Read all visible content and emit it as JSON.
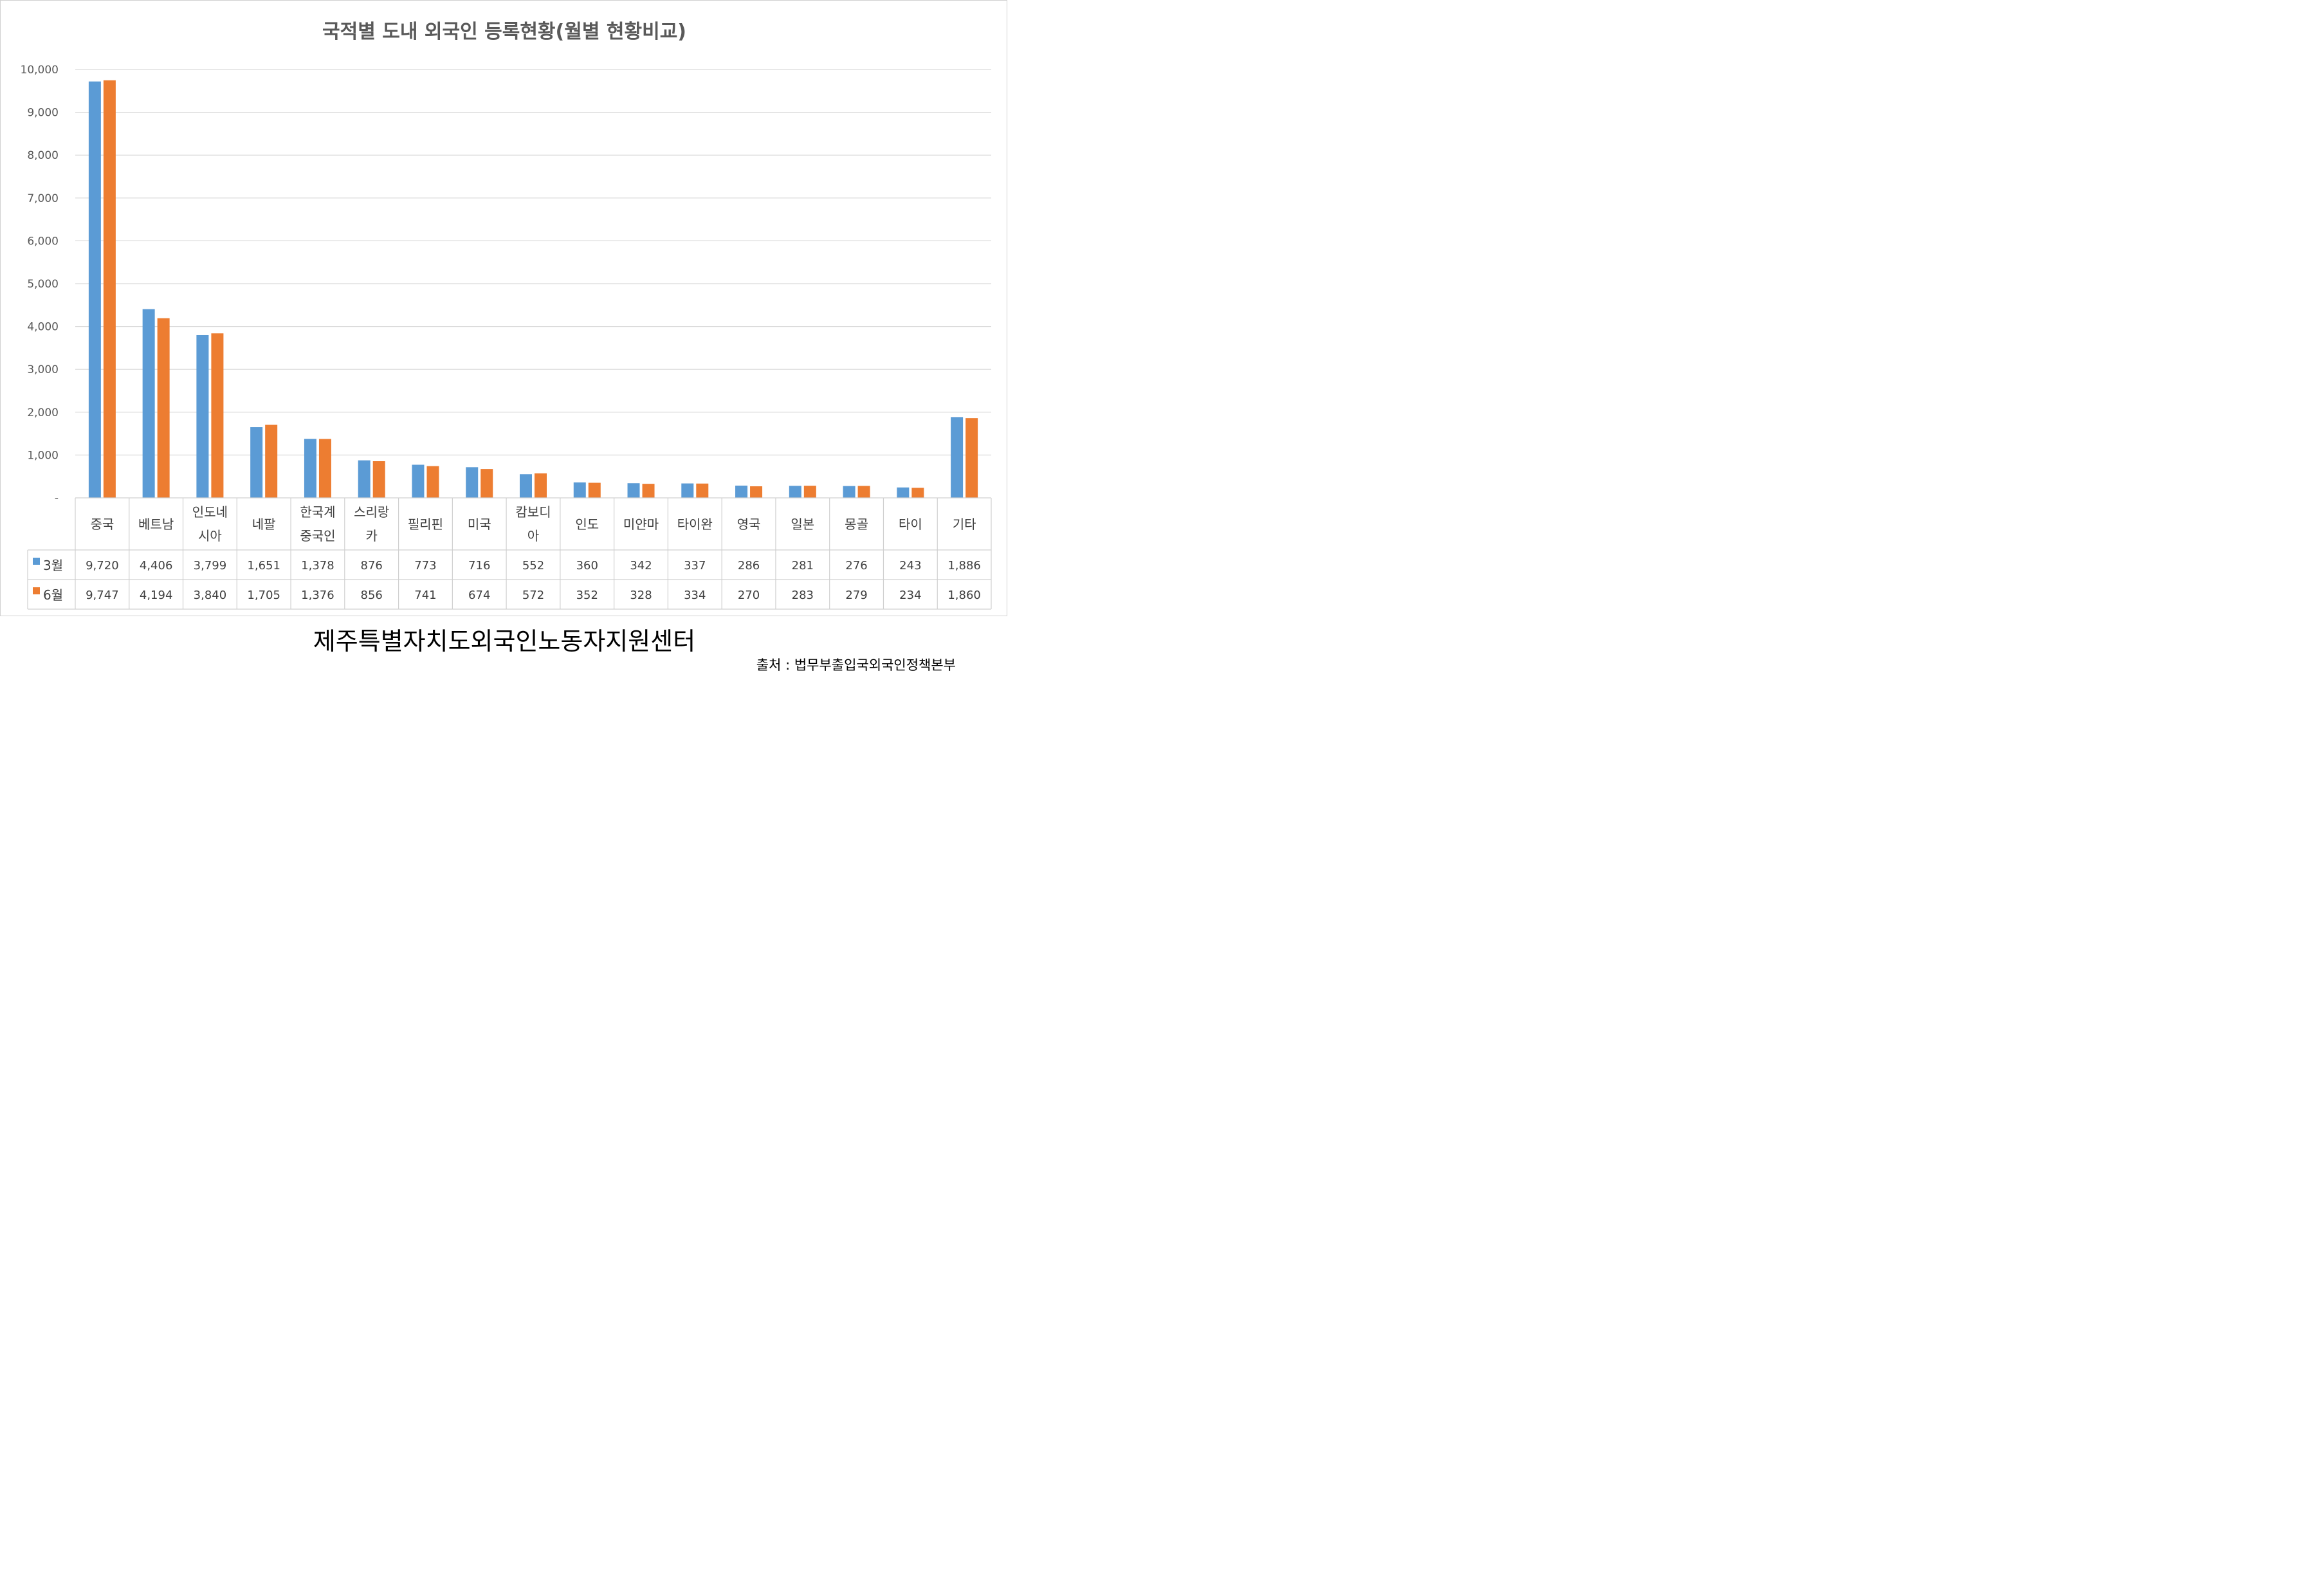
{
  "chart_data": {
    "type": "bar",
    "title": "국적별 도내 외국인 등록현황(월별 현황비교)",
    "categories": [
      [
        "중국"
      ],
      [
        "베트남"
      ],
      [
        "인도네",
        "시아"
      ],
      [
        "네팔"
      ],
      [
        "한국계",
        "중국인"
      ],
      [
        "스리랑",
        "카"
      ],
      [
        "필리핀"
      ],
      [
        "미국"
      ],
      [
        "캄보디",
        "아"
      ],
      [
        "인도"
      ],
      [
        "미얀마"
      ],
      [
        "타이완"
      ],
      [
        "영국"
      ],
      [
        "일본"
      ],
      [
        "몽골"
      ],
      [
        "타이"
      ],
      [
        "기타"
      ]
    ],
    "series": [
      {
        "name": "3월",
        "color": "#5b9bd5",
        "values": [
          9720,
          4406,
          3799,
          1651,
          1378,
          876,
          773,
          716,
          552,
          360,
          342,
          337,
          286,
          281,
          276,
          243,
          1886
        ],
        "labels": [
          "9,720",
          "4,406",
          "3,799",
          "1,651",
          "1,378",
          "876",
          "773",
          "716",
          "552",
          "360",
          "342",
          "337",
          "286",
          "281",
          "276",
          "243",
          "1,886"
        ]
      },
      {
        "name": "6월",
        "color": "#ed7d31",
        "values": [
          9747,
          4194,
          3840,
          1705,
          1376,
          856,
          741,
          674,
          572,
          352,
          328,
          334,
          270,
          283,
          279,
          234,
          1860
        ],
        "labels": [
          "9,747",
          "4,194",
          "3,840",
          "1,705",
          "1,376",
          "856",
          "741",
          "674",
          "572",
          "352",
          "328",
          "334",
          "270",
          "283",
          "279",
          "234",
          "1,860"
        ]
      }
    ],
    "ylim": [
      0,
      10000
    ],
    "yticks": [
      0,
      1000,
      2000,
      3000,
      4000,
      5000,
      6000,
      7000,
      8000,
      9000,
      10000
    ],
    "ytick_labels": [
      "-",
      "1,000",
      "2,000",
      "3,000",
      "4,000",
      "5,000",
      "6,000",
      "7,000",
      "8,000",
      "9,000",
      "10,000"
    ],
    "grid": true,
    "legend": "data table"
  },
  "footer": {
    "organization": "제주특별자치도외국인노동자지원센터",
    "source": "출처 : 법무부출입국외국인정책본부"
  }
}
